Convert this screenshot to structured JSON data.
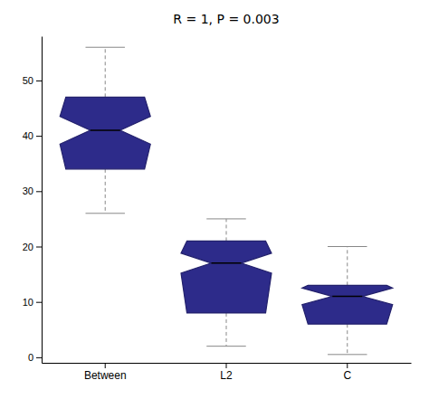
{
  "chart_data": {
    "type": "box",
    "title": "R = 1, P = 0.003",
    "categories": [
      "Between",
      "L2",
      "C"
    ],
    "boxes": [
      {
        "q1": 34,
        "median": 41,
        "q3": 47,
        "whisker_low": 26,
        "whisker_high": 56,
        "notch_low": 38.5,
        "notch_high": 43.5
      },
      {
        "q1": 8,
        "median": 17,
        "q3": 21,
        "whisker_low": 2,
        "whisker_high": 25,
        "notch_low": 15.2,
        "notch_high": 18.8
      },
      {
        "q1": 6,
        "median": 11,
        "q3": 13,
        "whisker_low": 0.5,
        "whisker_high": 20,
        "notch_low": 9.5,
        "notch_high": 12.5
      }
    ],
    "color": "#2D2B8A",
    "ylim": [
      -1,
      58
    ],
    "yticks": [
      0,
      10,
      20,
      30,
      40,
      50
    ],
    "grid": false
  }
}
